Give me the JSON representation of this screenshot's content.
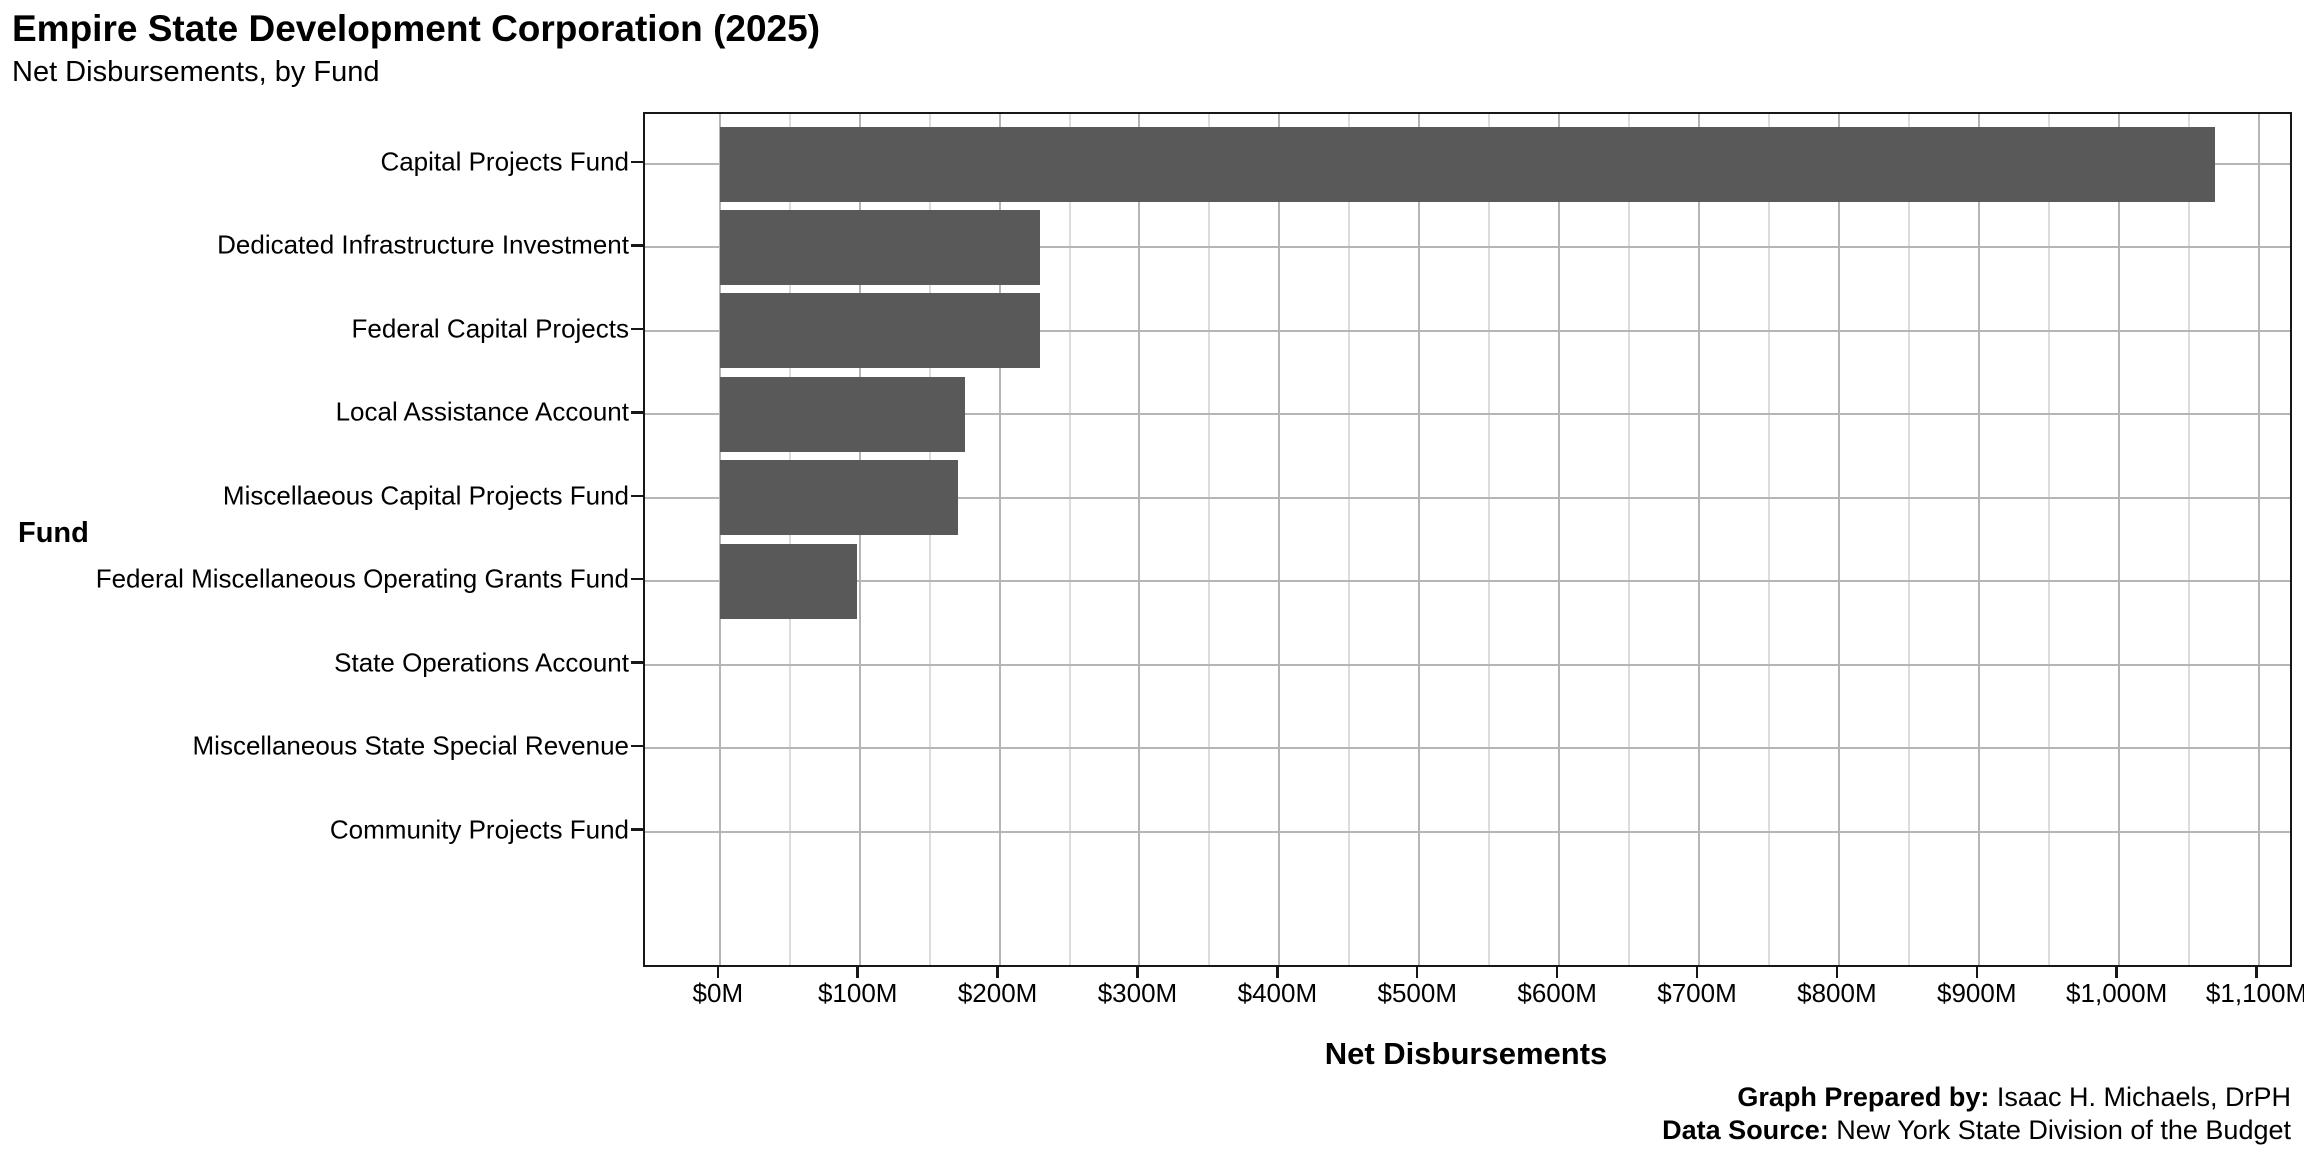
{
  "chart_data": {
    "type": "bar",
    "orientation": "horizontal",
    "title": "Empire State Development Corporation (2025)",
    "subtitle": "Net Disbursements, by Fund",
    "xlabel": "Net Disbursements",
    "ylabel": "Fund",
    "categories": [
      "Capital Projects Fund",
      "Dedicated Infrastructure Investment",
      "Federal Capital Projects",
      "Local Assistance Account",
      "Miscellaeous Capital Projects Fund",
      "Federal Miscellaneous Operating Grants Fund",
      "State Operations Account",
      "Miscellaneous State Special Revenue",
      "Community Projects Fund"
    ],
    "values": [
      1069,
      229,
      229,
      175,
      170,
      98,
      0,
      0,
      0
    ],
    "value_unit": "millions of dollars",
    "x_ticks": [
      {
        "value": 0,
        "label": "$0M"
      },
      {
        "value": 100,
        "label": "$100M"
      },
      {
        "value": 200,
        "label": "$200M"
      },
      {
        "value": 300,
        "label": "$300M"
      },
      {
        "value": 400,
        "label": "$400M"
      },
      {
        "value": 500,
        "label": "$500M"
      },
      {
        "value": 600,
        "label": "$600M"
      },
      {
        "value": 700,
        "label": "$700M"
      },
      {
        "value": 800,
        "label": "$800M"
      },
      {
        "value": 900,
        "label": "$900M"
      },
      {
        "value": 1000,
        "label": "$1,000M"
      },
      {
        "value": 1100,
        "label": "$1,100M"
      }
    ],
    "x_minor_ticks": [
      50,
      150,
      250,
      350,
      450,
      550,
      650,
      750,
      850,
      950,
      1050
    ],
    "xlim": [
      -53.5,
      1122.5
    ],
    "grid": true,
    "legend_position": "none",
    "colors": {
      "bar": "#595959",
      "major_grid": "#B5B5B5",
      "minor_grid": "#DCDCDC",
      "panel_border": "#171717",
      "background": "#FFFFFF"
    }
  },
  "footer": {
    "prepared_by_label": "Graph Prepared by:",
    "prepared_by_value": " Isaac H. Michaels, DrPH",
    "data_source_label": "Data Source:",
    "data_source_value": " New York State Division of the Budget"
  }
}
